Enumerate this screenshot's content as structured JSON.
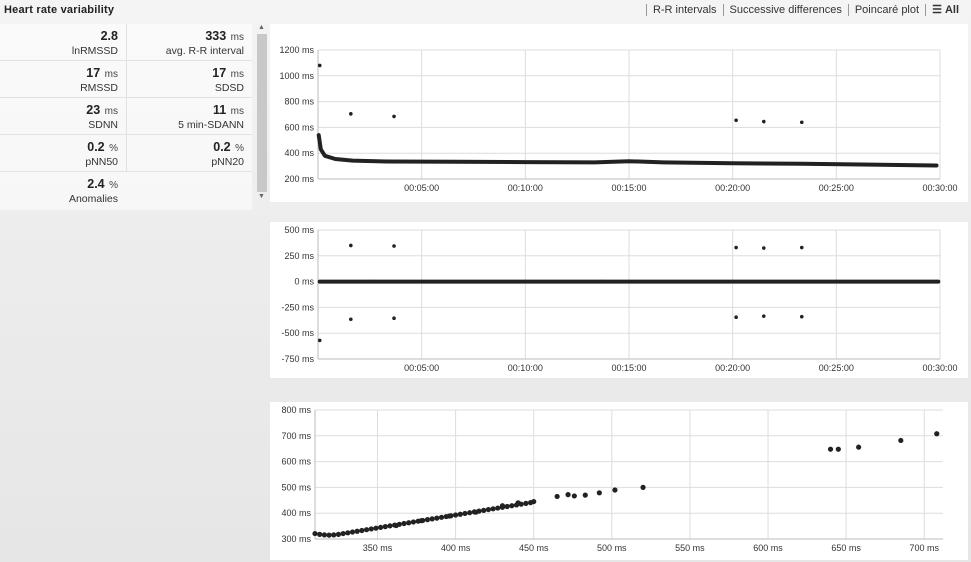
{
  "title": "Heart rate variability",
  "tabs": [
    {
      "label": "R-R intervals"
    },
    {
      "label": "Successive differences"
    },
    {
      "label": "Poincaré plot"
    },
    {
      "label": "All",
      "icon": "menu-icon",
      "active": true
    }
  ],
  "stats": [
    [
      {
        "value": "2.8",
        "unit": "",
        "label": "lnRMSSD"
      },
      {
        "value": "333",
        "unit": "ms",
        "label": "avg. R-R interval"
      }
    ],
    [
      {
        "value": "17",
        "unit": "ms",
        "label": "RMSSD"
      },
      {
        "value": "17",
        "unit": "ms",
        "label": "SDSD"
      }
    ],
    [
      {
        "value": "23",
        "unit": "ms",
        "label": "SDNN"
      },
      {
        "value": "11",
        "unit": "ms",
        "label": "5 min-SDANN"
      }
    ],
    [
      {
        "value": "0.2",
        "unit": "%",
        "label": "pNN50"
      },
      {
        "value": "0.2",
        "unit": "%",
        "label": "pNN20"
      }
    ],
    [
      {
        "value": "2.4",
        "unit": "%",
        "label": "Anomalies"
      }
    ]
  ],
  "colors": {
    "marker": "#222222",
    "grid": "#dddddd"
  },
  "chart_data": [
    {
      "type": "scatter",
      "name": "rr-intervals",
      "xlim": [
        0,
        1800
      ],
      "ylim": [
        200,
        1200
      ],
      "xticks": [
        300,
        600,
        900,
        1200,
        1500,
        1800
      ],
      "xtick_labels": [
        "00:05:00",
        "00:10:00",
        "00:15:00",
        "00:20:00",
        "00:25:00",
        "00:30:00"
      ],
      "yticks": [
        200,
        400,
        600,
        800,
        1000,
        1200
      ],
      "ytick_labels": [
        "200 ms",
        "400 ms",
        "600 ms",
        "800 ms",
        "1000 ms",
        "1200 ms"
      ],
      "trend": [
        [
          2,
          540
        ],
        [
          8,
          430
        ],
        [
          20,
          380
        ],
        [
          50,
          355
        ],
        [
          100,
          343
        ],
        [
          200,
          336
        ],
        [
          400,
          333
        ],
        [
          600,
          331
        ],
        [
          800,
          329
        ],
        [
          900,
          338
        ],
        [
          1000,
          329
        ],
        [
          1200,
          322
        ],
        [
          1400,
          318
        ],
        [
          1600,
          312
        ],
        [
          1790,
          305
        ]
      ],
      "outliers": [
        [
          5,
          1080
        ],
        [
          95,
          705
        ],
        [
          220,
          685
        ],
        [
          1210,
          655
        ],
        [
          1290,
          645
        ],
        [
          1400,
          640
        ]
      ]
    },
    {
      "type": "scatter",
      "name": "successive-differences",
      "xlim": [
        0,
        1800
      ],
      "ylim": [
        -750,
        500
      ],
      "xticks": [
        300,
        600,
        900,
        1200,
        1500,
        1800
      ],
      "xtick_labels": [
        "00:05:00",
        "00:10:00",
        "00:15:00",
        "00:20:00",
        "00:25:00",
        "00:30:00"
      ],
      "yticks": [
        -750,
        -500,
        -250,
        0,
        250,
        500
      ],
      "ytick_labels": [
        "-750 ms",
        "-500 ms",
        "-250 ms",
        "0 ms",
        "250 ms",
        "500 ms"
      ],
      "trend": [
        [
          5,
          0
        ],
        [
          1795,
          0
        ]
      ],
      "outliers": [
        [
          5,
          -570
        ],
        [
          95,
          350
        ],
        [
          95,
          -365
        ],
        [
          220,
          345
        ],
        [
          220,
          -355
        ],
        [
          1210,
          330
        ],
        [
          1210,
          -345
        ],
        [
          1290,
          325
        ],
        [
          1290,
          -335
        ],
        [
          1400,
          330
        ],
        [
          1400,
          -340
        ],
        [
          160,
          0
        ],
        [
          820,
          0
        ]
      ]
    },
    {
      "type": "scatter",
      "name": "poincare-plot",
      "xlim": [
        310,
        712
      ],
      "ylim": [
        300,
        800
      ],
      "xticks": [
        350,
        400,
        450,
        500,
        550,
        600,
        650,
        700
      ],
      "xtick_labels": [
        "350 ms",
        "400 ms",
        "450 ms",
        "500 ms",
        "550 ms",
        "600 ms",
        "650 ms",
        "700 ms"
      ],
      "yticks": [
        300,
        400,
        500,
        600,
        700,
        800
      ],
      "ytick_labels": [
        "300 ms",
        "400 ms",
        "500 ms",
        "600 ms",
        "700 ms",
        "800 ms"
      ],
      "points": [
        [
          310,
          321
        ],
        [
          313,
          318
        ],
        [
          316,
          316
        ],
        [
          319,
          315
        ],
        [
          322,
          316
        ],
        [
          325,
          318
        ],
        [
          328,
          321
        ],
        [
          331,
          324
        ],
        [
          334,
          327
        ],
        [
          337,
          330
        ],
        [
          340,
          333
        ],
        [
          343,
          336
        ],
        [
          346,
          339
        ],
        [
          349,
          342
        ],
        [
          352,
          345
        ],
        [
          355,
          348
        ],
        [
          358,
          351
        ],
        [
          361,
          354
        ],
        [
          364,
          357
        ],
        [
          367,
          360
        ],
        [
          370,
          363
        ],
        [
          373,
          366
        ],
        [
          376,
          369
        ],
        [
          379,
          372
        ],
        [
          382,
          375
        ],
        [
          385,
          378
        ],
        [
          388,
          381
        ],
        [
          391,
          384
        ],
        [
          394,
          387
        ],
        [
          397,
          390
        ],
        [
          400,
          393
        ],
        [
          403,
          396
        ],
        [
          406,
          399
        ],
        [
          409,
          402
        ],
        [
          412,
          405
        ],
        [
          415,
          408
        ],
        [
          418,
          411
        ],
        [
          421,
          414
        ],
        [
          424,
          417
        ],
        [
          427,
          420
        ],
        [
          430,
          423
        ],
        [
          433,
          426
        ],
        [
          436,
          429
        ],
        [
          439,
          432
        ],
        [
          442,
          435
        ],
        [
          445,
          438
        ],
        [
          448,
          441
        ],
        [
          362,
          352
        ],
        [
          378,
          371
        ],
        [
          396,
          389
        ],
        [
          413,
          404
        ],
        [
          430,
          429
        ],
        [
          440,
          440
        ],
        [
          450,
          445
        ],
        [
          465,
          465
        ],
        [
          472,
          472
        ],
        [
          476,
          467
        ],
        [
          483,
          470
        ],
        [
          492,
          479
        ],
        [
          502,
          490
        ],
        [
          520,
          500
        ],
        [
          640,
          648
        ],
        [
          645,
          648
        ],
        [
          658,
          656
        ],
        [
          685,
          682
        ],
        [
          708,
          708
        ]
      ]
    }
  ]
}
